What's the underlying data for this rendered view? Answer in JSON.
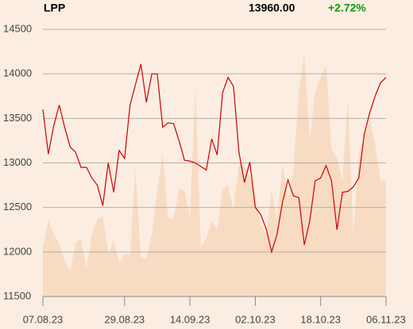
{
  "chart_data": {
    "type": "line",
    "title": "LPP",
    "last_price": "13960.00",
    "change": "+2.72%",
    "categories": [
      "07.08.23",
      null,
      null,
      null,
      null,
      null,
      null,
      null,
      null,
      null,
      null,
      null,
      null,
      null,
      null,
      "29.08.23",
      null,
      null,
      null,
      null,
      null,
      null,
      null,
      null,
      null,
      null,
      null,
      "14.09.23",
      null,
      null,
      null,
      null,
      null,
      null,
      null,
      null,
      null,
      null,
      null,
      "02.10.23",
      null,
      null,
      null,
      null,
      null,
      null,
      null,
      null,
      null,
      null,
      null,
      "18.10.23",
      null,
      null,
      null,
      null,
      null,
      null,
      null,
      null,
      null,
      null,
      null,
      "06.11.23"
    ],
    "series": [
      {
        "style": "area",
        "color": "#f7dbc3",
        "values": [
          12050,
          12350,
          12200,
          12100,
          11900,
          11780,
          12100,
          12150,
          11800,
          12200,
          12370,
          12400,
          11980,
          12130,
          11880,
          11980,
          11970,
          12930,
          11930,
          11920,
          12200,
          12700,
          13100,
          12380,
          12370,
          12700,
          12700,
          12380,
          13840,
          12050,
          12150,
          12350,
          12250,
          12700,
          12750,
          12470,
          13000,
          12960,
          12850,
          12650,
          12300,
          12200,
          12700,
          12350,
          12980,
          12600,
          12900,
          13800,
          14220,
          13250,
          13800,
          13950,
          14100,
          13150,
          13050,
          12800,
          13700,
          12200,
          13100,
          13300,
          13500,
          13200,
          12800,
          12800
        ]
      },
      {
        "style": "line",
        "color": "#cc0000",
        "values": [
          13600,
          13100,
          13420,
          13650,
          13400,
          13180,
          13120,
          12950,
          12950,
          12830,
          12750,
          12520,
          13000,
          12670,
          13140,
          13050,
          13650,
          13880,
          14110,
          13680,
          14000,
          14000,
          13400,
          13450,
          13440,
          13250,
          13030,
          13020,
          13000,
          12960,
          12920,
          13270,
          13090,
          13790,
          13960,
          13860,
          13120,
          12780,
          13010,
          12500,
          12420,
          12260,
          12000,
          12200,
          12560,
          12810,
          12630,
          12610,
          12080,
          12350,
          12800,
          12830,
          12970,
          12800,
          12250,
          12670,
          12680,
          12730,
          12830,
          13320,
          13560,
          13750,
          13900,
          13960
        ]
      }
    ],
    "ylim": [
      11500,
      14500
    ],
    "yticks": [
      11500,
      12000,
      12500,
      13000,
      13500,
      14000,
      14500
    ],
    "grid": true
  }
}
